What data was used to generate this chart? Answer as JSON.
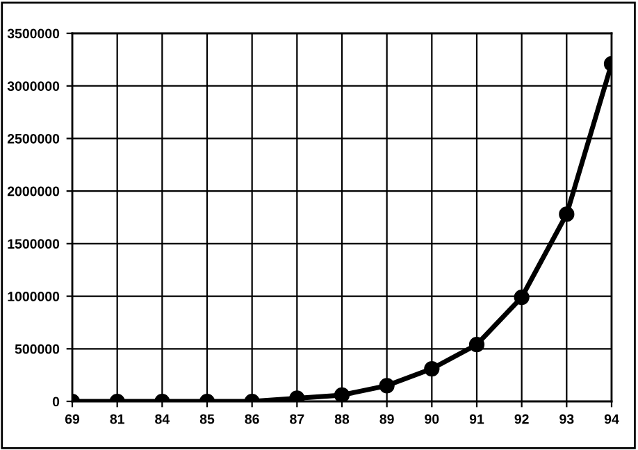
{
  "chart_data": {
    "type": "line",
    "categories": [
      "69",
      "81",
      "84",
      "85",
      "86",
      "87",
      "88",
      "89",
      "90",
      "91",
      "92",
      "93",
      "94"
    ],
    "series": [
      {
        "color": "#000000",
        "values": [
          0,
          0,
          0,
          0,
          0,
          30000,
          60000,
          150000,
          310000,
          540000,
          990000,
          1780000,
          3210000
        ]
      }
    ],
    "ylim": [
      0,
      3500000
    ],
    "yticks": [
      0,
      500000,
      1000000,
      1500000,
      2000000,
      2500000,
      3000000,
      3500000
    ],
    "grid": true,
    "marker": "circle",
    "line_style": "solid",
    "legend": false
  }
}
